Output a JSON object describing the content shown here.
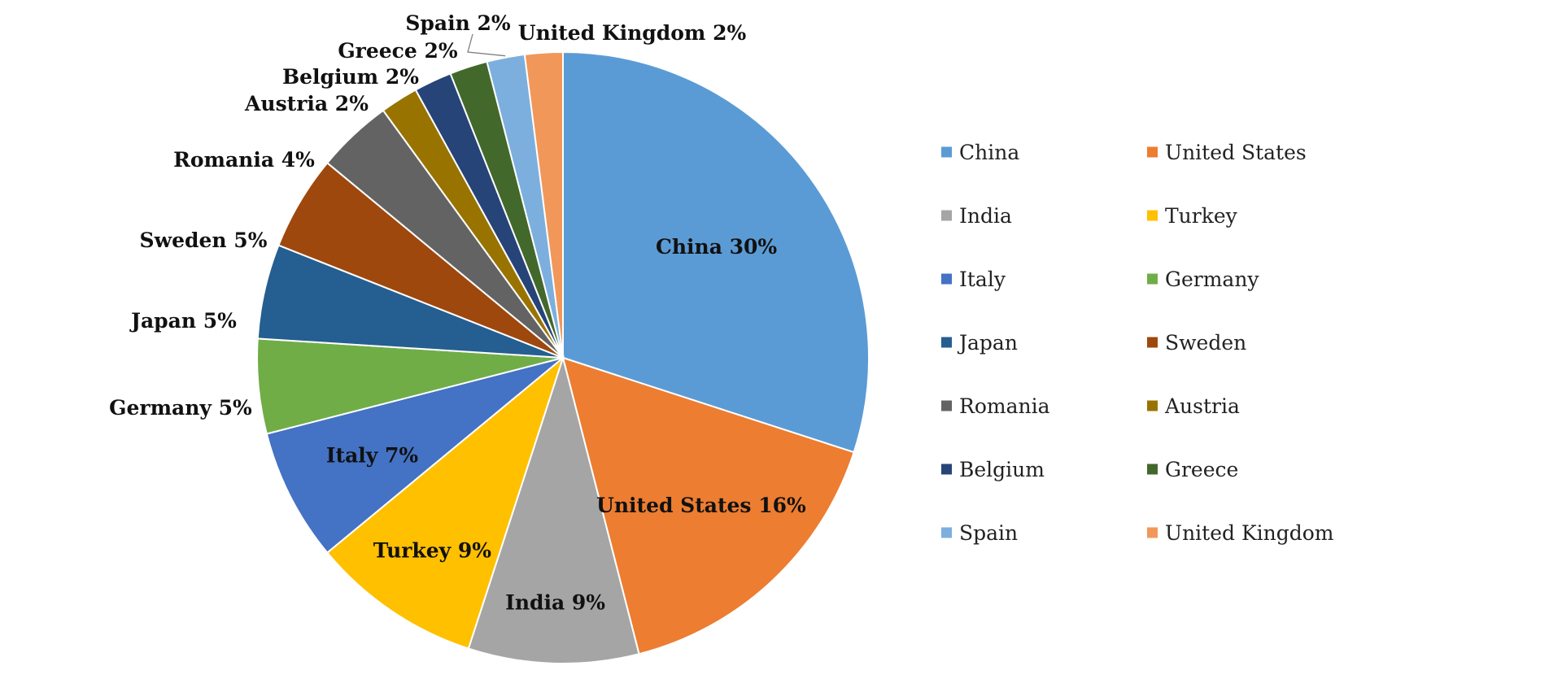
{
  "chart_data": {
    "type": "pie",
    "title": "",
    "legend_position": "right",
    "start_angle": "12 o'clock",
    "direction": "clockwise",
    "slices": [
      {
        "name": "China",
        "value": 30,
        "label": "China 30%",
        "color": "#5B9BD5"
      },
      {
        "name": "United States",
        "value": 16,
        "label": "United States 16%",
        "color": "#ED7D31"
      },
      {
        "name": "India",
        "value": 9,
        "label": "India 9%",
        "color": "#A5A5A5"
      },
      {
        "name": "Turkey",
        "value": 9,
        "label": "Turkey 9%",
        "color": "#FFC000"
      },
      {
        "name": "Italy",
        "value": 7,
        "label": "Italy 7%",
        "color": "#4472C4"
      },
      {
        "name": "Germany",
        "value": 5,
        "label": "Germany 5%",
        "color": "#70AD47"
      },
      {
        "name": "Japan",
        "value": 5,
        "label": "Japan 5%",
        "color": "#255E91"
      },
      {
        "name": "Sweden",
        "value": 5,
        "label": "Sweden 5%",
        "color": "#9E480E"
      },
      {
        "name": "Romania",
        "value": 4,
        "label": "Romania 4%",
        "color": "#636363"
      },
      {
        "name": "Austria",
        "value": 2,
        "label": "Austria 2%",
        "color": "#997300"
      },
      {
        "name": "Belgium",
        "value": 2,
        "label": "Belgium 2%",
        "color": "#264478"
      },
      {
        "name": "Greece",
        "value": 2,
        "label": "Greece 2%",
        "color": "#43682B"
      },
      {
        "name": "Spain",
        "value": 2,
        "label": "Spain 2%",
        "color": "#7CAFDD"
      },
      {
        "name": "United Kingdom",
        "value": 2,
        "label": "United Kingdom 2%",
        "color": "#F1975A"
      }
    ]
  }
}
